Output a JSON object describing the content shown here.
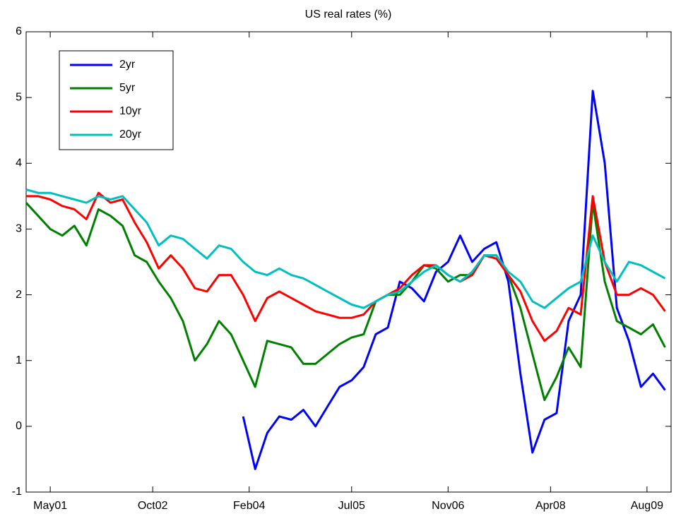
{
  "chart_data": {
    "type": "line",
    "title": "US real rates (%)",
    "x": [
      "2001-01",
      "2001-03",
      "2001-05",
      "2001-07",
      "2001-09",
      "2001-11",
      "2002-01",
      "2002-03",
      "2002-05",
      "2002-07",
      "2002-09",
      "2002-11",
      "2003-01",
      "2003-03",
      "2003-05",
      "2003-07",
      "2003-09",
      "2003-11",
      "2004-01",
      "2004-03",
      "2004-05",
      "2004-07",
      "2004-09",
      "2004-11",
      "2005-01",
      "2005-03",
      "2005-05",
      "2005-07",
      "2005-09",
      "2005-11",
      "2006-01",
      "2006-03",
      "2006-05",
      "2006-07",
      "2006-09",
      "2006-11",
      "2007-01",
      "2007-03",
      "2007-05",
      "2007-07",
      "2007-09",
      "2007-11",
      "2008-01",
      "2008-03",
      "2008-05",
      "2008-07",
      "2008-09",
      "2008-11",
      "2009-01",
      "2009-03",
      "2009-05",
      "2009-07",
      "2009-09",
      "2009-11"
    ],
    "series": [
      {
        "name": "2yr",
        "color": "#0000ff",
        "values": [
          null,
          null,
          null,
          null,
          null,
          null,
          null,
          null,
          null,
          null,
          null,
          null,
          null,
          null,
          null,
          null,
          null,
          null,
          0.15,
          -0.65,
          -0.1,
          0.15,
          0.1,
          0.25,
          0.0,
          0.3,
          0.6,
          0.7,
          0.9,
          1.4,
          1.5,
          2.2,
          2.1,
          1.9,
          2.35,
          2.5,
          2.9,
          2.5,
          2.7,
          2.8,
          2.2,
          0.8,
          -0.4,
          0.1,
          0.2,
          1.6,
          2.0,
          5.1,
          4.0,
          1.8,
          1.3,
          0.6,
          0.8,
          0.55
        ]
      },
      {
        "name": "5yr",
        "color": "#008000",
        "values": [
          3.4,
          3.2,
          3.0,
          2.9,
          3.05,
          2.75,
          3.3,
          3.2,
          3.05,
          2.6,
          2.5,
          2.2,
          1.95,
          1.6,
          1.0,
          1.25,
          1.6,
          1.4,
          1.0,
          0.6,
          1.3,
          1.25,
          1.2,
          0.95,
          0.95,
          1.1,
          1.25,
          1.35,
          1.4,
          1.9,
          2.0,
          2.0,
          2.2,
          2.45,
          2.4,
          2.2,
          2.3,
          2.3,
          2.6,
          2.6,
          2.3,
          1.8,
          1.1,
          0.4,
          0.75,
          1.2,
          0.9,
          3.4,
          2.2,
          1.6,
          1.5,
          1.4,
          1.55,
          1.2
        ]
      },
      {
        "name": "10yr",
        "color": "#ff0000",
        "values": [
          3.5,
          3.5,
          3.45,
          3.35,
          3.3,
          3.15,
          3.55,
          3.4,
          3.45,
          3.1,
          2.8,
          2.4,
          2.6,
          2.4,
          2.1,
          2.05,
          2.3,
          2.3,
          2.0,
          1.6,
          1.95,
          2.05,
          1.95,
          1.85,
          1.75,
          1.7,
          1.65,
          1.65,
          1.7,
          1.9,
          2.0,
          2.1,
          2.3,
          2.45,
          2.45,
          2.3,
          2.2,
          2.3,
          2.6,
          2.55,
          2.3,
          2.05,
          1.6,
          1.3,
          1.45,
          1.8,
          1.7,
          3.5,
          2.5,
          2.0,
          2.0,
          2.1,
          2.0,
          1.75
        ]
      },
      {
        "name": "20yr",
        "color": "#00bfbf",
        "values": [
          3.6,
          3.55,
          3.55,
          3.5,
          3.45,
          3.4,
          3.5,
          3.45,
          3.5,
          3.3,
          3.1,
          2.75,
          2.9,
          2.85,
          2.7,
          2.55,
          2.75,
          2.7,
          2.5,
          2.35,
          2.3,
          2.4,
          2.3,
          2.25,
          2.15,
          2.05,
          1.95,
          1.85,
          1.8,
          1.9,
          2.0,
          2.05,
          2.2,
          2.35,
          2.45,
          2.3,
          2.2,
          2.35,
          2.6,
          2.6,
          2.35,
          2.2,
          1.9,
          1.8,
          1.95,
          2.1,
          2.2,
          2.9,
          2.5,
          2.2,
          2.5,
          2.45,
          2.35,
          2.25
        ]
      }
    ],
    "xlim": [
      "2001-01",
      "2009-12"
    ],
    "xticks": [
      {
        "value": "2001-05",
        "label": "May01"
      },
      {
        "value": "2002-10",
        "label": "Oct02"
      },
      {
        "value": "2004-02",
        "label": "Feb04"
      },
      {
        "value": "2005-07",
        "label": "Jul05"
      },
      {
        "value": "2006-11",
        "label": "Nov06"
      },
      {
        "value": "2008-04",
        "label": "Apr08"
      },
      {
        "value": "2009-08",
        "label": "Aug09"
      }
    ],
    "ylim": [
      -1,
      6
    ],
    "yticks": [
      -1,
      0,
      1,
      2,
      3,
      4,
      5,
      6
    ],
    "grid": false,
    "legend": "northwest"
  }
}
